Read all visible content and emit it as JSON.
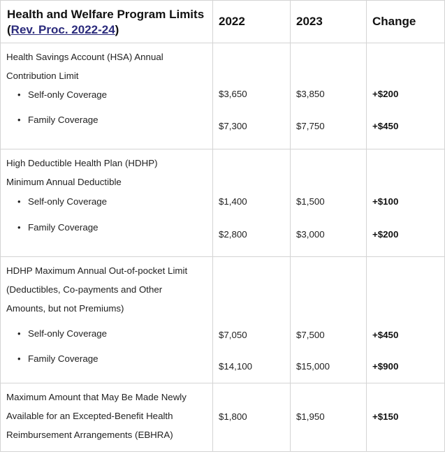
{
  "header": {
    "title_part1": "Health and Welfare Program Limits (",
    "link_text": "Rev. Proc. 2022-24",
    "title_part2": ")",
    "col_2022": "2022",
    "col_2023": "2023",
    "col_change": "Change"
  },
  "rows": [
    {
      "desc_lines": [
        "Health Savings Account (HSA) Annual",
        "Contribution Limit"
      ],
      "items": [
        {
          "label": "Self-only Coverage",
          "v2022": "$3,650",
          "v2023": "$3,850",
          "change": "+$200"
        },
        {
          "label": "Family Coverage",
          "v2022": "$7,300",
          "v2023": "$7,750",
          "change": "+$450"
        }
      ]
    },
    {
      "desc_lines": [
        "High Deductible Health Plan (HDHP)",
        "Minimum Annual Deductible"
      ],
      "items": [
        {
          "label": "Self-only Coverage",
          "v2022": "$1,400",
          "v2023": "$1,500",
          "change": "+$100"
        },
        {
          "label": "Family Coverage",
          "v2022": "$2,800",
          "v2023": "$3,000",
          "change": "+$200"
        }
      ]
    },
    {
      "desc_lines": [
        "HDHP Maximum Annual Out-of-pocket Limit",
        "(Deductibles, Co-payments and Other",
        "Amounts, but not Premiums)"
      ],
      "items": [
        {
          "label": "Self-only Coverage",
          "v2022": "$7,050",
          "v2023": "$7,500",
          "change": "+$450"
        },
        {
          "label": "Family Coverage",
          "v2022": "$14,100",
          "v2023": "$15,000",
          "change": "+$900"
        }
      ]
    },
    {
      "desc_lines": [
        "Maximum Amount that May Be Made Newly",
        "Available for an Excepted-Benefit Health",
        "Reimbursement Arrangements (EBHRA)"
      ],
      "v2022": "$1,800",
      "v2023": "$1,950",
      "change": "+$150"
    }
  ]
}
